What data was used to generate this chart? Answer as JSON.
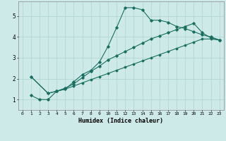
{
  "xlabel": "Humidex (Indice chaleur)",
  "background_color": "#ceeae8",
  "grid_color": "#aed4d0",
  "line_color": "#1a6e60",
  "xlim": [
    -0.5,
    23.5
  ],
  "ylim": [
    0.5,
    5.7
  ],
  "yticks": [
    1,
    2,
    3,
    4,
    5
  ],
  "xticks": [
    0,
    1,
    2,
    3,
    4,
    5,
    6,
    7,
    8,
    9,
    10,
    11,
    12,
    13,
    14,
    15,
    16,
    17,
    18,
    19,
    20,
    21,
    22,
    23
  ],
  "line1_x": [
    1,
    2,
    3,
    4,
    5,
    6,
    7,
    8,
    9,
    10,
    11,
    12,
    13,
    14,
    15,
    16,
    17,
    18,
    19,
    20,
    21,
    22,
    23
  ],
  "line1_y": [
    1.2,
    1.0,
    1.0,
    1.4,
    1.5,
    1.85,
    2.2,
    2.4,
    2.8,
    3.55,
    4.45,
    5.4,
    5.4,
    5.3,
    4.8,
    4.8,
    4.7,
    4.5,
    4.4,
    4.25,
    4.1,
    4.0,
    3.85
  ],
  "line2_x": [
    1,
    3,
    4,
    5,
    6,
    7,
    8,
    9,
    10,
    11,
    12,
    13,
    14,
    15,
    16,
    17,
    18,
    19,
    20,
    21,
    22,
    23
  ],
  "line2_y": [
    2.1,
    1.3,
    1.4,
    1.55,
    1.75,
    2.05,
    2.35,
    2.6,
    2.9,
    3.1,
    3.3,
    3.5,
    3.7,
    3.9,
    4.05,
    4.2,
    4.35,
    4.5,
    4.65,
    4.2,
    3.95,
    3.85
  ],
  "line3_x": [
    1,
    3,
    4,
    5,
    6,
    7,
    8,
    9,
    10,
    11,
    12,
    13,
    14,
    15,
    16,
    17,
    18,
    19,
    20,
    21,
    22,
    23
  ],
  "line3_y": [
    2.1,
    1.3,
    1.4,
    1.5,
    1.65,
    1.8,
    1.95,
    2.1,
    2.25,
    2.4,
    2.55,
    2.7,
    2.85,
    3.0,
    3.15,
    3.3,
    3.45,
    3.6,
    3.75,
    3.9,
    3.9,
    3.85
  ]
}
